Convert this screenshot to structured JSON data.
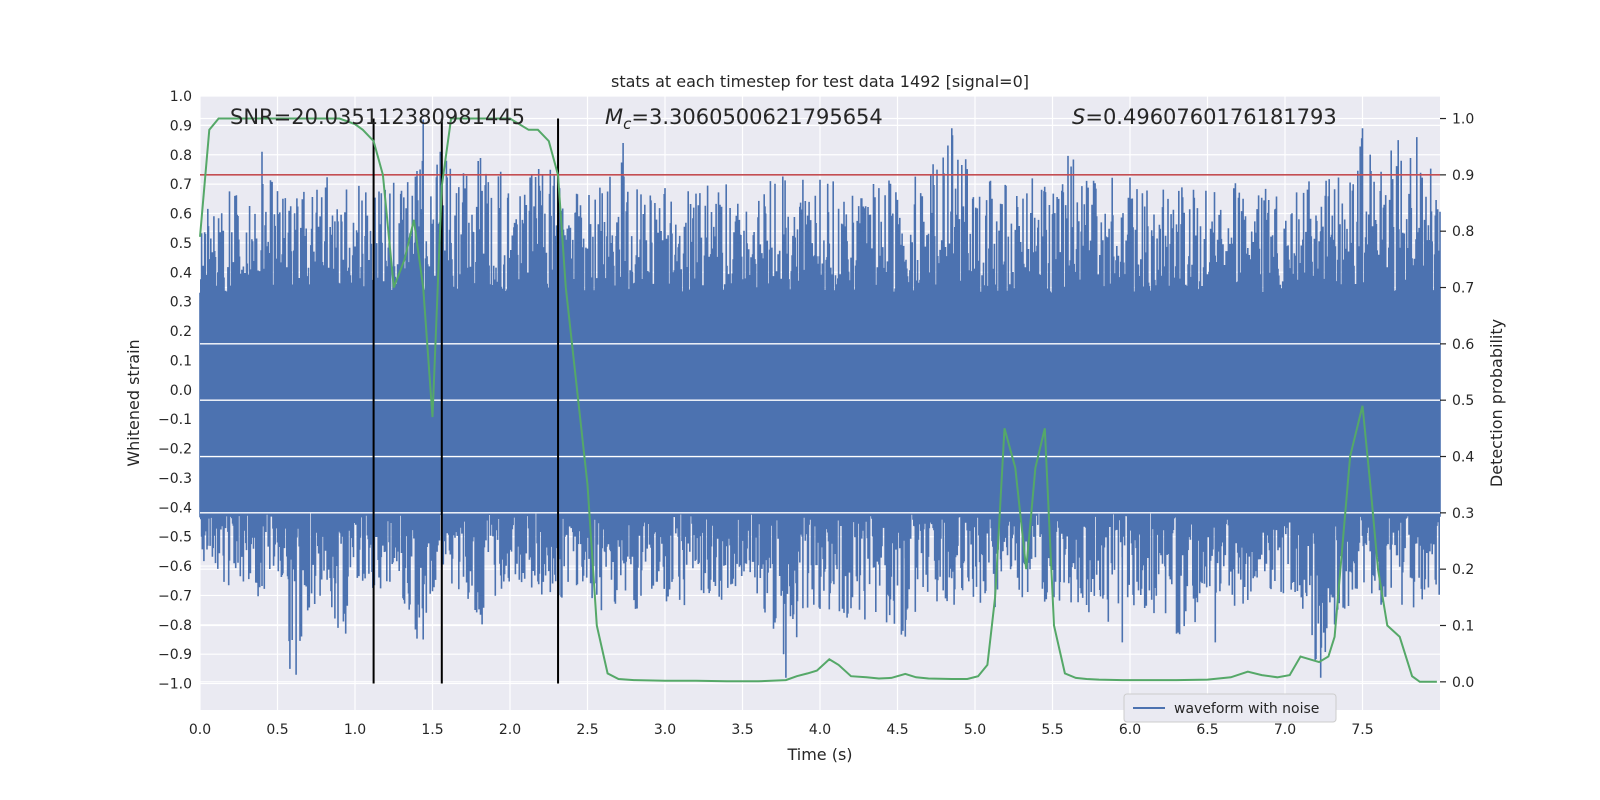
{
  "chart_data": {
    "type": "line",
    "title": "stats at each timestep for test data 1492 [signal=0]",
    "xlabel": "Time (s)",
    "ylabel": "Whitened strain",
    "ylabel_right": "Detection probability",
    "xlim": [
      0,
      8.0
    ],
    "ylim": [
      -1.09,
      1.0
    ],
    "ylim_right": [
      -0.05,
      1.04
    ],
    "xticks": [
      0.0,
      0.5,
      1.0,
      1.5,
      2.0,
      2.5,
      3.0,
      3.5,
      4.0,
      4.5,
      5.0,
      5.5,
      6.0,
      6.5,
      7.0,
      7.5
    ],
    "xtick_labels": [
      "0.0",
      "0.5",
      "1.0",
      "1.5",
      "2.0",
      "2.5",
      "3.0",
      "3.5",
      "4.0",
      "4.5",
      "5.0",
      "5.5",
      "6.0",
      "6.5",
      "7.0",
      "7.5"
    ],
    "yticks": [
      1.0,
      0.9,
      0.8,
      0.7,
      0.6,
      0.5,
      0.4,
      0.3,
      0.2,
      0.1,
      0.0,
      -0.1,
      -0.2,
      -0.3,
      -0.4,
      -0.5,
      -0.6,
      -0.7,
      -0.8,
      -0.9,
      -1.0
    ],
    "ytick_labels": [
      "1.0",
      "0.9",
      "0.8",
      "0.7",
      "0.6",
      "0.5",
      "0.4",
      "0.3",
      "0.2",
      "0.1",
      "0.0",
      "−0.1",
      "−0.2",
      "−0.3",
      "−0.4",
      "−0.5",
      "−0.6",
      "−0.7",
      "−0.8",
      "−0.9",
      "−1.0"
    ],
    "yticks_right": [
      1.0,
      0.9,
      0.8,
      0.7,
      0.6,
      0.5,
      0.4,
      0.3,
      0.2,
      0.1,
      0.0
    ],
    "ytick_labels_right": [
      "1.0",
      "0.9",
      "0.8",
      "0.7",
      "0.6",
      "0.5",
      "0.4",
      "0.3",
      "0.2",
      "0.1",
      "0.0"
    ],
    "annotations": {
      "snr": "SNR=20.035112380981445",
      "mc_symbol": "M",
      "mc_sub": "c",
      "mc_value": "=3.3060500621795654",
      "s_symbol": "S",
      "s_value": "=0.4960760176181793"
    },
    "legend": {
      "label": "waveform with noise",
      "location": "lower-right"
    },
    "threshold_right": 0.9,
    "vlines_x": [
      1.12,
      1.56,
      2.31
    ],
    "waveform": {
      "name": "waveform with noise",
      "color": "#4c72b0",
      "sample_step": 0.005,
      "envelope_x": [
        0.0,
        0.06,
        0.1,
        0.2,
        0.3,
        0.4,
        0.5,
        0.58,
        0.62,
        0.7,
        0.8,
        0.9,
        1.0,
        1.1,
        1.2,
        1.3,
        1.4,
        1.44,
        1.5,
        1.55,
        1.6,
        1.7,
        1.8,
        1.9,
        2.0,
        2.1,
        2.2,
        2.3,
        2.4,
        2.5,
        2.6,
        2.7,
        2.8,
        2.9,
        3.0,
        3.2,
        3.4,
        3.6,
        3.78,
        3.9,
        4.0,
        4.2,
        4.4,
        4.55,
        4.7,
        4.85,
        5.0,
        5.1,
        5.2,
        5.3,
        5.4,
        5.5,
        5.6,
        5.8,
        5.95,
        6.1,
        6.3,
        6.5,
        6.55,
        6.7,
        6.9,
        7.1,
        7.2,
        7.4,
        7.5,
        7.6,
        7.7,
        7.8,
        7.9,
        7.98
      ],
      "envelope_upper": [
        0.55,
        0.7,
        0.62,
        0.72,
        0.65,
        0.81,
        0.7,
        0.66,
        0.72,
        0.7,
        0.75,
        0.68,
        0.72,
        0.75,
        0.7,
        0.73,
        0.77,
        0.92,
        0.72,
        0.81,
        0.78,
        0.74,
        0.8,
        0.76,
        0.72,
        0.75,
        0.78,
        0.78,
        0.7,
        0.66,
        0.72,
        0.84,
        0.7,
        0.66,
        0.72,
        0.68,
        0.72,
        0.7,
        0.73,
        0.72,
        0.74,
        0.7,
        0.73,
        0.7,
        0.76,
        0.89,
        0.73,
        0.72,
        0.7,
        0.68,
        0.74,
        0.72,
        0.8,
        0.72,
        0.74,
        0.7,
        0.73,
        0.72,
        0.75,
        0.72,
        0.72,
        0.7,
        0.74,
        0.72,
        0.89,
        0.72,
        0.85,
        0.86,
        0.72,
        0.79
      ],
      "envelope_lower": [
        -0.55,
        -0.65,
        -0.6,
        -0.7,
        -0.65,
        -0.75,
        -0.6,
        -0.95,
        -0.97,
        -0.75,
        -0.7,
        -0.84,
        -0.68,
        -0.72,
        -0.7,
        -0.72,
        -0.85,
        -0.75,
        -0.8,
        -0.7,
        -0.72,
        -0.7,
        -0.83,
        -0.7,
        -0.72,
        -0.7,
        -0.7,
        -0.72,
        -0.7,
        -0.68,
        -0.85,
        -0.7,
        -0.82,
        -0.7,
        -0.72,
        -0.75,
        -0.72,
        -0.7,
        -0.98,
        -0.8,
        -0.75,
        -0.78,
        -0.8,
        -0.84,
        -0.72,
        -0.75,
        -0.72,
        -0.78,
        -0.7,
        -0.72,
        -0.74,
        -0.72,
        -0.74,
        -0.86,
        -0.72,
        -0.75,
        -0.86,
        -0.75,
        -0.72,
        -0.74,
        -0.72,
        -0.72,
        -0.98,
        -0.75,
        -0.72,
        -0.74,
        -0.72,
        -0.75,
        -0.72,
        -0.7
      ],
      "spikes": [
        [
          0.4,
          0.81
        ],
        [
          1.44,
          0.92
        ],
        [
          1.55,
          0.81
        ],
        [
          2.73,
          0.84
        ],
        [
          4.85,
          0.89
        ],
        [
          7.5,
          0.89
        ],
        [
          7.73,
          0.85
        ],
        [
          7.85,
          0.86
        ],
        [
          0.58,
          -0.95
        ],
        [
          0.62,
          -0.97
        ],
        [
          3.78,
          -0.98
        ],
        [
          7.23,
          -0.98
        ],
        [
          1.44,
          -0.85
        ],
        [
          5.95,
          -0.86
        ],
        [
          6.55,
          -0.86
        ],
        [
          4.55,
          -0.84
        ],
        [
          0.94,
          -0.83
        ]
      ]
    },
    "probability": {
      "name": "detection probability",
      "color": "#55a868",
      "x": [
        0.0,
        0.06,
        0.12,
        0.2,
        0.3,
        0.4,
        0.5,
        0.6,
        0.7,
        0.8,
        0.9,
        1.0,
        1.05,
        1.12,
        1.18,
        1.25,
        1.32,
        1.38,
        1.44,
        1.5,
        1.56,
        1.62,
        1.7,
        1.8,
        1.9,
        2.0,
        2.06,
        2.12,
        2.18,
        2.25,
        2.31,
        2.36,
        2.42,
        2.5,
        2.56,
        2.63,
        2.7,
        2.8,
        3.0,
        3.2,
        3.4,
        3.6,
        3.78,
        3.85,
        3.92,
        3.98,
        4.06,
        4.12,
        4.2,
        4.3,
        4.38,
        4.46,
        4.55,
        4.62,
        4.7,
        4.85,
        4.95,
        5.02,
        5.08,
        5.13,
        5.19,
        5.26,
        5.33,
        5.39,
        5.45,
        5.51,
        5.58,
        5.65,
        5.72,
        5.8,
        5.95,
        6.1,
        6.3,
        6.5,
        6.65,
        6.76,
        6.85,
        6.95,
        7.03,
        7.1,
        7.16,
        7.22,
        7.28,
        7.32,
        7.42,
        7.5,
        7.55,
        7.6,
        7.66,
        7.74,
        7.82,
        7.87,
        7.98
      ],
      "y": [
        0.79,
        0.98,
        1.0,
        1.0,
        1.0,
        1.0,
        1.0,
        1.0,
        1.0,
        1.0,
        1.0,
        0.99,
        0.98,
        0.96,
        0.9,
        0.7,
        0.75,
        0.82,
        0.7,
        0.47,
        0.88,
        1.0,
        1.0,
        1.0,
        1.0,
        1.0,
        0.99,
        0.98,
        0.98,
        0.96,
        0.9,
        0.7,
        0.55,
        0.35,
        0.1,
        0.015,
        0.005,
        0.003,
        0.002,
        0.002,
        0.001,
        0.001,
        0.003,
        0.01,
        0.015,
        0.02,
        0.04,
        0.03,
        0.01,
        0.008,
        0.006,
        0.007,
        0.014,
        0.008,
        0.006,
        0.005,
        0.005,
        0.01,
        0.03,
        0.15,
        0.45,
        0.38,
        0.2,
        0.38,
        0.45,
        0.1,
        0.015,
        0.007,
        0.005,
        0.004,
        0.003,
        0.003,
        0.003,
        0.004,
        0.008,
        0.018,
        0.012,
        0.008,
        0.012,
        0.045,
        0.04,
        0.035,
        0.045,
        0.08,
        0.4,
        0.49,
        0.35,
        0.2,
        0.1,
        0.08,
        0.01,
        0.0,
        0.0
      ]
    },
    "colors": {
      "background": "#eaeaf2",
      "grid": "#ffffff",
      "threshold": "#c44e52",
      "vline": "#000000",
      "text": "#262626"
    }
  }
}
